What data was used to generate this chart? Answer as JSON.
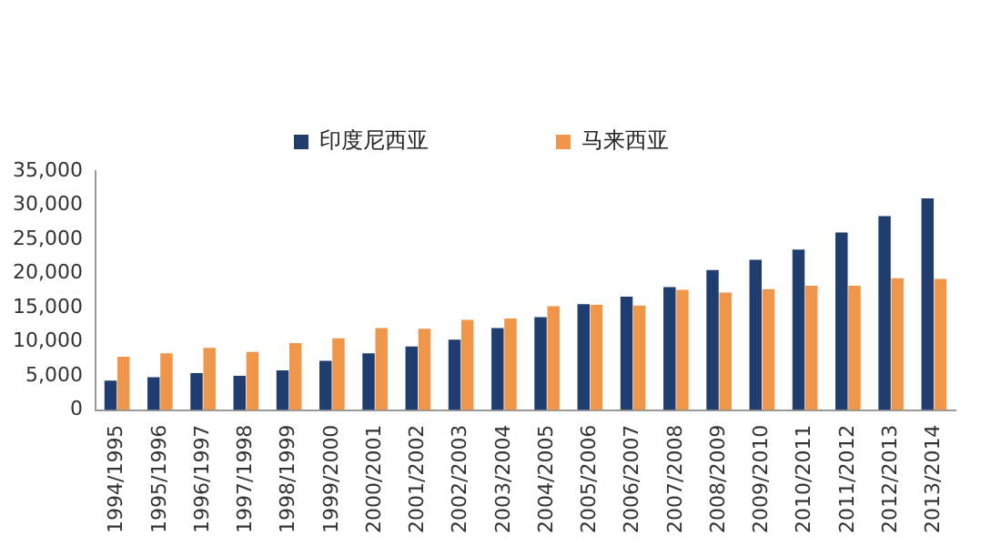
{
  "chart_data": {
    "type": "bar",
    "categories": [
      "1994/1995",
      "1995/1996",
      "1996/1997",
      "1997/1998",
      "1998/1999",
      "1999/2000",
      "2000/2001",
      "2001/2002",
      "2002/2003",
      "2003/2004",
      "2004/2005",
      "2005/2006",
      "2006/2007",
      "2007/2008",
      "2008/2009",
      "2009/2010",
      "2010/2011",
      "2011/2012",
      "2012/2013",
      "2013/2014"
    ],
    "series": [
      {
        "name": "印度尼西亚",
        "color": "#1f3d6e",
        "values": [
          4300,
          4800,
          5400,
          5000,
          5800,
          7200,
          8300,
          9300,
          10300,
          12000,
          13600,
          15500,
          16600,
          18000,
          20500,
          22000,
          23500,
          26000,
          28400,
          31000
        ]
      },
      {
        "name": "马来西亚",
        "color": "#f0964a",
        "values": [
          7800,
          8300,
          9100,
          8500,
          9800,
          10500,
          12000,
          11900,
          13200,
          13400,
          15200,
          15400,
          15300,
          17600,
          17200,
          17700,
          18200,
          18200,
          19300,
          19200
        ]
      }
    ],
    "ylim": [
      0,
      35000
    ],
    "yticks": [
      {
        "value": 0,
        "label": "0"
      },
      {
        "value": 5000,
        "label": "5,000"
      },
      {
        "value": 10000,
        "label": "10,000"
      },
      {
        "value": 15000,
        "label": "15,000"
      },
      {
        "value": 20000,
        "label": "20,000"
      },
      {
        "value": 25000,
        "label": "25,000"
      },
      {
        "value": 30000,
        "label": "30,000"
      },
      {
        "value": 35000,
        "label": "35,000"
      }
    ],
    "grid": false,
    "legend": "top"
  }
}
